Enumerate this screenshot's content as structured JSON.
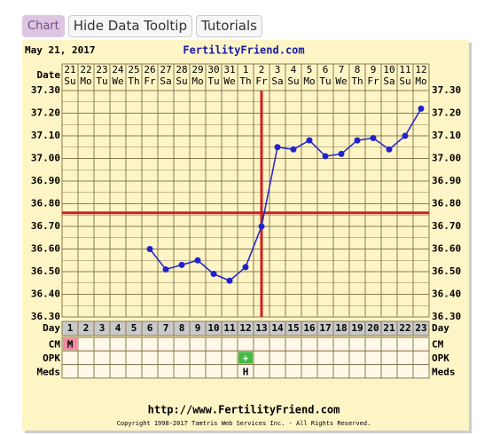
{
  "ui": {
    "buttons": [
      "Chart",
      "Hide Data Tooltip",
      "Tutorials"
    ]
  },
  "chart_data": {
    "type": "line",
    "header_date": "May 21, 2017",
    "site": "FertilityFriend.com",
    "footer_url": "http://www.FertilityFriend.com",
    "copyright": "Copyright 1998-2017 Tamtris Web Services Inc. - All Rights Reserved.",
    "date_label": "Date",
    "day_label": "Day",
    "dates": [
      "21",
      "22",
      "23",
      "24",
      "25",
      "26",
      "27",
      "28",
      "29",
      "30",
      "31",
      "1",
      "2",
      "3",
      "4",
      "5",
      "6",
      "7",
      "8",
      "9",
      "10",
      "11",
      "12"
    ],
    "weekdays": [
      "Su",
      "Mo",
      "Tu",
      "We",
      "Th",
      "Fr",
      "Sa",
      "Su",
      "Mo",
      "Tu",
      "We",
      "Th",
      "Fr",
      "Sa",
      "Su",
      "Mo",
      "Tu",
      "We",
      "Th",
      "Fr",
      "Sa",
      "Su",
      "Mo"
    ],
    "x": [
      1,
      2,
      3,
      4,
      5,
      6,
      7,
      8,
      9,
      10,
      11,
      12,
      13,
      14,
      15,
      16,
      17,
      18,
      19,
      20,
      21,
      22,
      23
    ],
    "xlim": [
      0.5,
      23.5
    ],
    "series": [
      {
        "color": "#2222cc",
        "values": [
          null,
          null,
          null,
          null,
          null,
          36.6,
          36.51,
          36.53,
          36.55,
          36.49,
          36.46,
          36.52,
          36.7,
          37.05,
          37.04,
          37.08,
          37.01,
          37.02,
          37.08,
          37.09,
          37.04,
          37.1,
          37.22
        ]
      }
    ],
    "ylim": [
      36.3,
      37.3
    ],
    "yticks": [
      {
        "value": 36.3,
        "label": "36.30"
      },
      {
        "value": 36.4,
        "label": "36.40"
      },
      {
        "value": 36.5,
        "label": "36.50"
      },
      {
        "value": 36.6,
        "label": "36.60"
      },
      {
        "value": 36.7,
        "label": "36.70"
      },
      {
        "value": 36.8,
        "label": "36.80"
      },
      {
        "value": 36.9,
        "label": "36.90"
      },
      {
        "value": 37.0,
        "label": "37.00"
      },
      {
        "value": 37.1,
        "label": "37.10"
      },
      {
        "value": 37.2,
        "label": "37.20"
      },
      {
        "value": 37.3,
        "label": "37.30"
      }
    ],
    "cover_line": 36.76,
    "ovulation_day": 13,
    "line_color": "#cc2222",
    "rows": [
      {
        "label": "CM",
        "marks": [
          {
            "day": 1,
            "text": "M",
            "color": "#f08aa0"
          }
        ]
      },
      {
        "label": "OPK",
        "marks": [
          {
            "day": 12,
            "text": "+",
            "color": "#44bb44"
          }
        ]
      },
      {
        "label": "Meds",
        "marks": [
          {
            "day": 12,
            "text": "H"
          }
        ]
      }
    ]
  }
}
